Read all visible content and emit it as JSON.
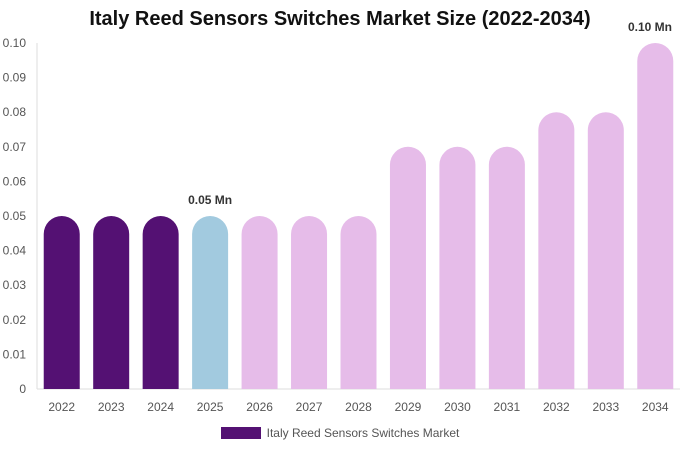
{
  "chart_data": {
    "type": "bar",
    "title": "Italy Reed Sensors Switches Market Size (2022-2034)",
    "categories": [
      "2022",
      "2023",
      "2024",
      "2025",
      "2026",
      "2027",
      "2028",
      "2029",
      "2030",
      "2031",
      "2032",
      "2033",
      "2034"
    ],
    "series": [
      {
        "name": "Italy Reed Sensors Switches Market",
        "values": [
          0.05,
          0.05,
          0.05,
          0.05,
          0.05,
          0.05,
          0.05,
          0.07,
          0.07,
          0.07,
          0.08,
          0.08,
          0.1
        ]
      }
    ],
    "ylim": [
      0,
      0.1
    ],
    "yticks": [
      "0",
      "0.01",
      "0.02",
      "0.03",
      "0.04",
      "0.05",
      "0.06",
      "0.07",
      "0.08",
      "0.09",
      "0.10"
    ],
    "data_labels": [
      {
        "category": "2025",
        "text": "0.05 Mn"
      },
      {
        "category": "2034",
        "text": "0.10 Mn"
      }
    ],
    "bar_colors": [
      "#541173",
      "#541173",
      "#541173",
      "#a2cadf",
      "#e6bce9",
      "#e6bce9",
      "#e6bce9",
      "#e6bce9",
      "#e6bce9",
      "#e6bce9",
      "#e6bce9",
      "#e6bce9",
      "#e6bce9"
    ],
    "legend_position": "bottom-center",
    "legend_color": "#541173",
    "grid": false
  }
}
